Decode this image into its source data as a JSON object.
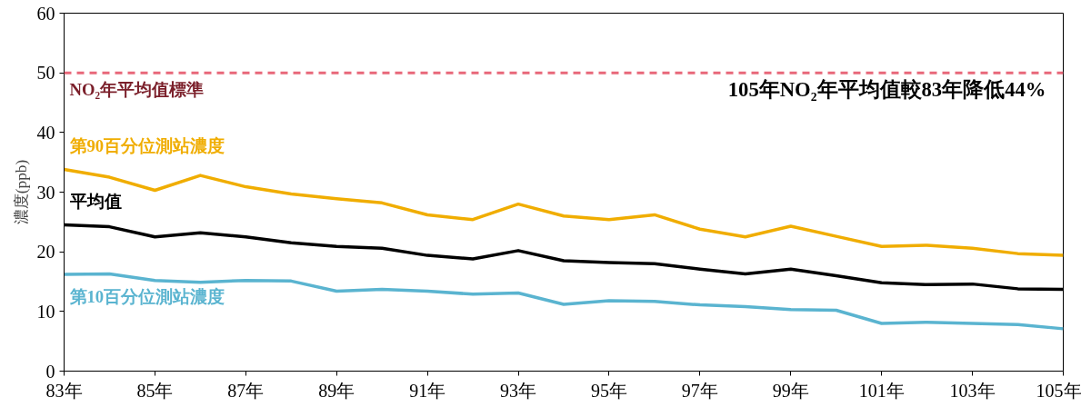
{
  "chart_data": {
    "type": "line",
    "ylabel": "濃度(ppb)",
    "x": [
      83,
      84,
      85,
      86,
      87,
      88,
      89,
      90,
      91,
      92,
      93,
      94,
      95,
      96,
      97,
      98,
      99,
      100,
      101,
      102,
      103,
      104,
      105
    ],
    "series": [
      {
        "name": "第90百分位測站濃度",
        "color": "#f0ad00",
        "values": [
          33.8,
          32.5,
          30.3,
          32.8,
          30.9,
          29.7,
          28.9,
          28.2,
          26.2,
          25.4,
          28.0,
          26.0,
          25.4,
          26.2,
          23.8,
          22.5,
          24.3,
          22.6,
          20.9,
          21.1,
          20.6,
          19.7,
          19.4
        ]
      },
      {
        "name": "平均值",
        "color": "#000000",
        "values": [
          24.5,
          24.2,
          22.5,
          23.2,
          22.5,
          21.5,
          20.9,
          20.6,
          19.4,
          18.8,
          20.2,
          18.5,
          18.2,
          18.0,
          17.1,
          16.3,
          17.1,
          16.0,
          14.8,
          14.5,
          14.6,
          13.8,
          13.7
        ]
      },
      {
        "name": "第10百分位測站濃度",
        "color": "#5ab4d0",
        "values": [
          16.2,
          16.3,
          15.2,
          14.9,
          15.2,
          15.1,
          13.4,
          13.7,
          13.4,
          12.9,
          13.1,
          11.2,
          11.8,
          11.7,
          11.1,
          10.8,
          10.3,
          10.2,
          8.0,
          8.2,
          8.0,
          7.8,
          7.1
        ]
      }
    ],
    "xlim": [
      83,
      105
    ],
    "xticks": [
      {
        "value": 83,
        "label": "83年"
      },
      {
        "value": 85,
        "label": "85年"
      },
      {
        "value": 87,
        "label": "87年"
      },
      {
        "value": 89,
        "label": "89年"
      },
      {
        "value": 91,
        "label": "91年"
      },
      {
        "value": 93,
        "label": "93年"
      },
      {
        "value": 95,
        "label": "95年"
      },
      {
        "value": 97,
        "label": "97年"
      },
      {
        "value": 99,
        "label": "99年"
      },
      {
        "value": 101,
        "label": "101年"
      },
      {
        "value": 103,
        "label": "103年"
      },
      {
        "value": 105,
        "label": "105年"
      }
    ],
    "ylim": [
      0,
      60
    ],
    "yticks": [
      0,
      10,
      20,
      30,
      40,
      50,
      60
    ],
    "ref_lines": [
      {
        "axis": "y",
        "value": 50,
        "label": "NO₂年平均值標準",
        "color": "#e8687a",
        "line_style": "dashed"
      }
    ],
    "annotations": [
      "105年NO₂年平均值較83年降低44%"
    ],
    "grid": false,
    "legend": false,
    "marker": "none",
    "line_style": "solid"
  }
}
